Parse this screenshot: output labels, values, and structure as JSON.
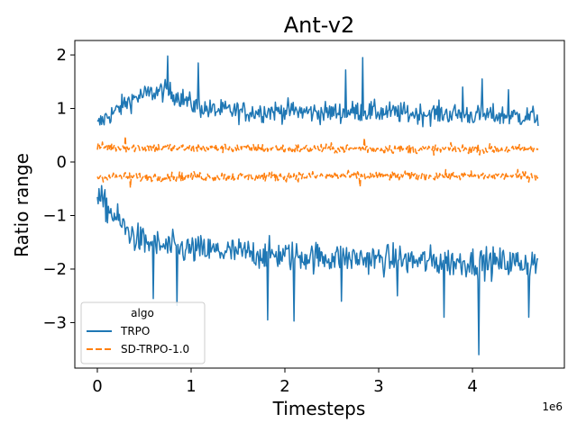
{
  "chart_data": {
    "type": "line",
    "title": "Ant-v2",
    "xlabel": "Timesteps",
    "ylabel": "Ratio range",
    "x_offset_text": "1e6",
    "xlim": [
      -0.24,
      4.98
    ],
    "ylim": [
      -3.85,
      2.27
    ],
    "xticks": [
      0,
      1,
      2,
      3,
      4
    ],
    "xtick_labels": [
      "0",
      "1",
      "2",
      "3",
      "4"
    ],
    "yticks": [
      -3,
      -2,
      -1,
      0,
      1,
      2
    ],
    "ytick_labels": [
      "−3",
      "−2",
      "−1",
      "0",
      "1",
      "2"
    ],
    "grid": false,
    "legend": {
      "title": "algo",
      "placement": "lower-left",
      "entries": [
        {
          "label": "TRPO",
          "style": "solid",
          "color": "#1f77b4"
        },
        {
          "label": "SD-TRPO-1.0",
          "style": "dashed",
          "color": "#ff7f0e"
        }
      ]
    },
    "series": [
      {
        "name": "TRPO (max ratio)",
        "legend_label": "TRPO",
        "color": "#1f77b4",
        "style": "solid",
        "x": [
          0.0,
          0.1,
          0.2,
          0.3,
          0.4,
          0.5,
          0.6,
          0.7,
          0.8,
          0.9,
          1.0,
          1.2,
          1.4,
          1.6,
          1.8,
          2.0,
          2.2,
          2.4,
          2.6,
          2.8,
          3.0,
          3.2,
          3.4,
          3.6,
          3.8,
          4.0,
          4.2,
          4.4,
          4.6,
          4.7
        ],
        "y": [
          0.68,
          0.85,
          0.95,
          1.1,
          1.2,
          1.25,
          1.3,
          1.33,
          1.28,
          1.2,
          1.08,
          0.97,
          0.96,
          0.93,
          0.95,
          0.96,
          0.94,
          0.92,
          0.93,
          0.95,
          0.93,
          0.92,
          0.9,
          0.91,
          0.9,
          0.88,
          0.87,
          0.86,
          0.85,
          0.85
        ],
        "noise": 0.14,
        "spikes": [
          [
            0.75,
            1.98
          ],
          [
            1.08,
            1.85
          ],
          [
            2.65,
            1.72
          ],
          [
            2.83,
            1.95
          ],
          [
            3.9,
            1.4
          ],
          [
            4.1,
            1.55
          ],
          [
            4.38,
            1.35
          ]
        ]
      },
      {
        "name": "TRPO (min ratio)",
        "legend_label": "TRPO",
        "color": "#1f77b4",
        "style": "solid",
        "x": [
          0.0,
          0.1,
          0.2,
          0.3,
          0.4,
          0.5,
          0.6,
          0.7,
          0.8,
          0.9,
          1.0,
          1.2,
          1.4,
          1.6,
          1.8,
          2.0,
          2.2,
          2.4,
          2.6,
          2.8,
          3.0,
          3.2,
          3.4,
          3.6,
          3.8,
          4.0,
          4.2,
          4.4,
          4.6,
          4.7
        ],
        "y": [
          -0.65,
          -0.85,
          -1.05,
          -1.25,
          -1.4,
          -1.5,
          -1.55,
          -1.58,
          -1.6,
          -1.62,
          -1.64,
          -1.66,
          -1.68,
          -1.7,
          -1.72,
          -1.74,
          -1.76,
          -1.78,
          -1.79,
          -1.8,
          -1.82,
          -1.83,
          -1.85,
          -1.86,
          -1.87,
          -1.87,
          -1.88,
          -1.88,
          -1.88,
          -1.88
        ],
        "noise": 0.2,
        "spikes": [
          [
            0.6,
            -2.55
          ],
          [
            0.85,
            -2.68
          ],
          [
            1.82,
            -2.95
          ],
          [
            2.1,
            -2.97
          ],
          [
            2.6,
            -2.6
          ],
          [
            3.2,
            -2.5
          ],
          [
            3.7,
            -2.9
          ],
          [
            4.07,
            -3.6
          ],
          [
            4.6,
            -2.9
          ]
        ]
      },
      {
        "name": "SD-TRPO-1.0 (max ratio)",
        "legend_label": "SD-TRPO-1.0",
        "color": "#ff7f0e",
        "style": "dashed",
        "x": [
          0.0,
          0.5,
          1.0,
          1.5,
          2.0,
          2.5,
          3.0,
          3.5,
          4.0,
          4.5,
          4.7
        ],
        "y": [
          0.28,
          0.27,
          0.26,
          0.26,
          0.25,
          0.25,
          0.25,
          0.24,
          0.24,
          0.24,
          0.24
        ],
        "noise": 0.06,
        "spikes": [
          [
            0.3,
            0.48
          ],
          [
            2.85,
            0.45
          ]
        ]
      },
      {
        "name": "SD-TRPO-1.0 (min ratio)",
        "legend_label": "SD-TRPO-1.0",
        "color": "#ff7f0e",
        "style": "dashed",
        "x": [
          0.0,
          0.5,
          1.0,
          1.5,
          2.0,
          2.5,
          3.0,
          3.5,
          4.0,
          4.5,
          4.7
        ],
        "y": [
          -0.28,
          -0.28,
          -0.27,
          -0.27,
          -0.27,
          -0.26,
          -0.26,
          -0.26,
          -0.26,
          -0.26,
          -0.26
        ],
        "noise": 0.06,
        "spikes": [
          [
            0.35,
            -0.48
          ],
          [
            2.8,
            -0.46
          ]
        ]
      }
    ]
  }
}
